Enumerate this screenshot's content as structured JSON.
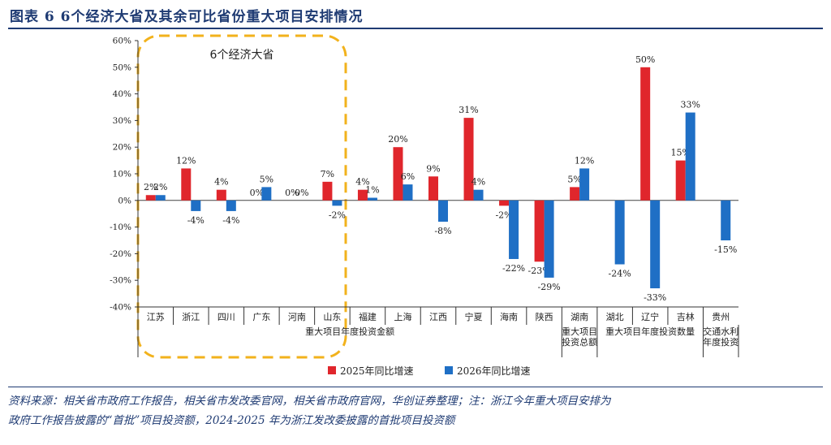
{
  "title": "图表 6   6个经济大省及其余可比省份重大项目安排情况",
  "footer": {
    "line1": "资料来源：相关省市政府工作报告，相关省市发改委官网，相关省市政府官网，华创证券整理；注：浙江今年重大项目安排为",
    "line2": "政府工作报告披露的“首批”项目投资额，2024-2025 年为浙江发改委披露的首批项目投资额"
  },
  "chart_data": {
    "type": "bar",
    "title": "6个经济大省及其余可比省份重大项目安排情况",
    "highlight_label": "6个经济大省",
    "ylim": [
      -40,
      60
    ],
    "yticks": [
      -40,
      -30,
      -20,
      -10,
      0,
      10,
      20,
      30,
      40,
      50,
      60
    ],
    "ytick_labels": [
      "-40%",
      "-30%",
      "-20%",
      "-10%",
      "0%",
      "10%",
      "20%",
      "30%",
      "40%",
      "50%",
      "60%"
    ],
    "categories": [
      "江苏",
      "浙江",
      "四川",
      "广东",
      "河南",
      "山东",
      "福建",
      "上海",
      "江西",
      "宁夏",
      "海南",
      "陕西",
      "湖南",
      "湖北",
      "辽宁",
      "吉林",
      "贵州"
    ],
    "series": [
      {
        "name": "2025年同比增速",
        "color": "#e0262c",
        "values": [
          2,
          12,
          4,
          0,
          0,
          7,
          4,
          20,
          9,
          31,
          -2,
          -23,
          5,
          0,
          50,
          15,
          null
        ],
        "labels": [
          "2%",
          "12%",
          "4%",
          "0%",
          "0%",
          "7%",
          "4%",
          "20%",
          "9%",
          "31%",
          "-2%",
          "-23%",
          "5%",
          "",
          "50%",
          "15%",
          ""
        ]
      },
      {
        "name": "2026年同比增速",
        "color": "#1f6fc5",
        "values": [
          2,
          -4,
          -4,
          5,
          0,
          -2,
          1,
          6,
          -8,
          4,
          -22,
          -29,
          12,
          -24,
          -33,
          33,
          -15
        ],
        "labels": [
          "2%",
          "-4%",
          "-4%",
          "5%",
          "0%",
          "-2%",
          "1%",
          "6%",
          "-8%",
          "4%",
          "-22%",
          "-29%",
          "12%",
          "-24%",
          "-33%",
          "33%",
          "-15%"
        ]
      }
    ],
    "groups": [
      {
        "label": "重大项目年度投资金额",
        "span": [
          0,
          11
        ]
      },
      {
        "label": "重大项目投资总额",
        "span": [
          12,
          12
        ]
      },
      {
        "label": "重大项目年度投资数量",
        "span": [
          13,
          15
        ]
      },
      {
        "label": "交通水利年度投资",
        "span": [
          16,
          16
        ]
      }
    ],
    "legend": [
      "2025年同比增速",
      "2026年同比增速"
    ],
    "legend_position": "bottom"
  }
}
